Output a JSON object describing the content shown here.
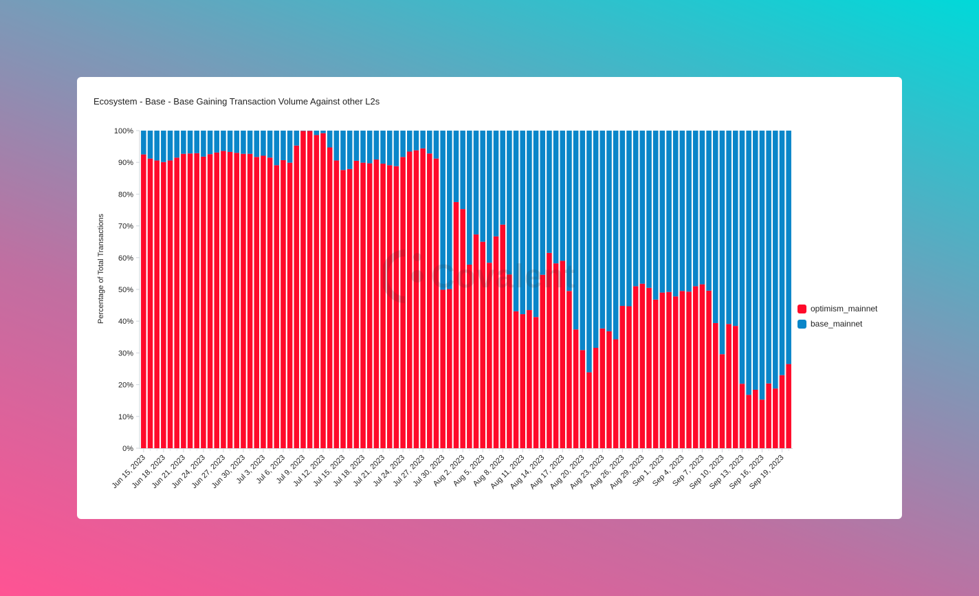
{
  "chart_data": {
    "type": "bar",
    "stacked": true,
    "title": "Ecosystem - Base - Base Gaining Transaction Volume Against other L2s",
    "ylabel": "Percentage of Total Transactions",
    "xlabel": "",
    "ylim": [
      0,
      100
    ],
    "yticks": [
      "0%",
      "10%",
      "20%",
      "30%",
      "40%",
      "50%",
      "60%",
      "70%",
      "80%",
      "90%",
      "100%"
    ],
    "x_tick_labels": [
      "Jun 15, 2023",
      "Jun 18, 2023",
      "Jun 21, 2023",
      "Jun 24, 2023",
      "Jun 27, 2023",
      "Jun 30, 2023",
      "Jul 3, 2023",
      "Jul 6, 2023",
      "Jul 9, 2023",
      "Jul 12, 2023",
      "Jul 15, 2023",
      "Jul 18, 2023",
      "Jul 21, 2023",
      "Jul 24, 2023",
      "Jul 27, 2023",
      "Jul 30, 2023",
      "Aug 2, 2023",
      "Aug 5, 2023",
      "Aug 8, 2023",
      "Aug 11, 2023",
      "Aug 14, 2023",
      "Aug 17, 2023",
      "Aug 20, 2023",
      "Aug 23, 2023",
      "Aug 26, 2023",
      "Aug 29, 2023",
      "Sep 1, 2023",
      "Sep 4, 2023",
      "Sep 7, 2023",
      "Sep 10, 2023",
      "Sep 13, 2023",
      "Sep 16, 2023",
      "Sep 19, 2023"
    ],
    "x_start_date": "2023-06-15",
    "x_end_date": "2023-09-20",
    "legend_position": "right",
    "grid": false,
    "series": [
      {
        "name": "optimism_mainnet",
        "color": "#ff0a2a",
        "values": [
          92.5,
          91.2,
          90.6,
          90.1,
          90.6,
          91.5,
          92.7,
          92.8,
          92.9,
          91.8,
          92.6,
          93.1,
          93.6,
          93.3,
          93,
          92.7,
          92.7,
          91.7,
          92.1,
          91.5,
          89.1,
          90.7,
          89.9,
          95.3,
          99.9,
          99.9,
          98.6,
          99.2,
          94.7,
          90.6,
          87.6,
          87.9,
          90.5,
          89.9,
          89.7,
          90.9,
          89.6,
          89.1,
          88.8,
          91.7,
          93.4,
          93.8,
          94.4,
          92.8,
          91.2,
          49.9,
          50.1,
          77.5,
          75.3,
          57.8,
          67.3,
          65,
          58.4,
          66.7,
          70.4,
          54.7,
          43.1,
          42.2,
          43.5,
          41.3,
          54.6,
          61.5,
          58.2,
          59,
          49.5,
          37.4,
          30.9,
          23.9,
          31.6,
          37.7,
          36.8,
          34.3,
          44.8,
          44.7,
          51,
          51.8,
          50.5,
          46.8,
          49,
          49.2,
          47.8,
          49.5,
          49.3,
          51,
          51.6,
          49.6,
          39.4,
          29.6,
          39.1,
          38.5,
          20.3,
          16.8,
          18.4,
          15.3,
          20.4,
          18.8,
          23,
          26.5
        ]
      },
      {
        "name": "base_mainnet",
        "color": "#0a86c9",
        "values": [
          7.5,
          8.8,
          9.4,
          9.9,
          9.4,
          8.5,
          7.3,
          7.2,
          7.1,
          8.2,
          7.4,
          6.9,
          6.4,
          6.7,
          7,
          7.3,
          7.3,
          8.3,
          7.9,
          8.5,
          10.9,
          9.3,
          10.1,
          4.7,
          0.1,
          0.1,
          1.4,
          0.8,
          5.3,
          9.4,
          12.4,
          12.1,
          9.5,
          10.1,
          10.3,
          9.1,
          10.4,
          10.9,
          11.2,
          8.3,
          6.6,
          6.2,
          5.6,
          7.2,
          8.8,
          50.1,
          49.9,
          22.5,
          24.7,
          42.2,
          32.7,
          35,
          41.6,
          33.3,
          29.6,
          45.3,
          56.9,
          57.8,
          56.5,
          58.7,
          45.4,
          38.5,
          41.8,
          41,
          50.5,
          62.6,
          69.1,
          76.1,
          68.4,
          62.3,
          63.2,
          65.7,
          55.2,
          55.3,
          49,
          48.2,
          49.5,
          53.2,
          51,
          50.8,
          52.2,
          50.5,
          50.7,
          49,
          48.4,
          50.4,
          60.6,
          70.4,
          60.9,
          61.5,
          79.7,
          83.2,
          81.6,
          84.7,
          79.6,
          81.2,
          77,
          73.5
        ]
      }
    ],
    "watermark": "Covalent"
  }
}
